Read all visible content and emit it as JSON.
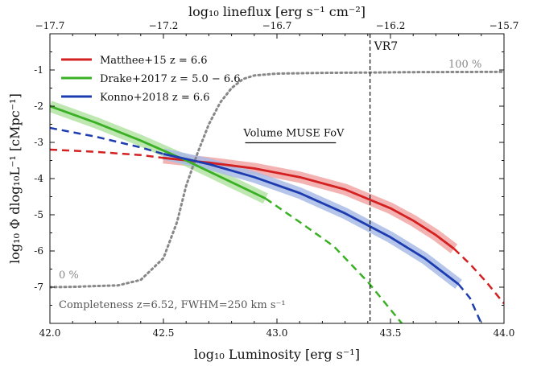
{
  "chart_data": {
    "type": "line",
    "xlabel": "log₁₀ Luminosity [erg s⁻¹]",
    "ylabel": "log₁₀ Φ dlog₁₀L⁻¹ [cMpc⁻¹]",
    "x2label": "log₁₀ lineflux [erg s⁻¹ cm⁻²]",
    "xlim": [
      42.0,
      44.0
    ],
    "ylim": [
      -8,
      0
    ],
    "xticks": [
      42.0,
      42.5,
      43.0,
      43.5,
      44.0
    ],
    "xtick_labels": [
      "42.0",
      "42.5",
      "43.0",
      "43.5",
      "44.0"
    ],
    "yticks": [
      -7,
      -6,
      -5,
      -4,
      -3,
      -2,
      -1
    ],
    "ytick_labels": [
      "-7",
      "-6",
      "-5",
      "-4",
      "-3",
      "-2",
      "-1"
    ],
    "x2ticks": [
      42.0,
      42.5,
      43.0,
      43.5,
      44.0
    ],
    "x2tick_labels": [
      "−17.7",
      "−17.2",
      "−16.7",
      "−16.2",
      "−15.7"
    ],
    "grid": false,
    "legend_placement": "top-left",
    "series": [
      {
        "name": "Matthee+15 z = 6.6",
        "color": "#d42020",
        "band_color": "#f2a6a6",
        "solid": [
          [
            42.5,
            -3.43
          ],
          [
            42.7,
            -3.56
          ],
          [
            42.9,
            -3.72
          ],
          [
            43.1,
            -3.96
          ],
          [
            43.3,
            -4.3
          ],
          [
            43.5,
            -4.82
          ],
          [
            43.6,
            -5.16
          ],
          [
            43.7,
            -5.56
          ],
          [
            43.78,
            -5.94
          ]
        ],
        "dashed": [
          [
            42.0,
            -3.2
          ],
          [
            42.2,
            -3.26
          ],
          [
            42.4,
            -3.35
          ],
          [
            42.5,
            -3.43
          ]
        ],
        "dashed_tail": [
          [
            43.78,
            -5.94
          ],
          [
            43.85,
            -6.36
          ],
          [
            43.92,
            -6.84
          ],
          [
            44.0,
            -7.45
          ]
        ]
      },
      {
        "name": "Drake+2017 z = 5.0 − 6.6",
        "color": "#3ab024",
        "band_color": "#b4e3a4",
        "solid": [
          [
            42.0,
            -2.0
          ],
          [
            42.2,
            -2.45
          ],
          [
            42.4,
            -2.95
          ],
          [
            42.6,
            -3.5
          ],
          [
            42.8,
            -4.1
          ],
          [
            42.95,
            -4.55
          ]
        ],
        "dashed": [],
        "dashed_tail": [
          [
            42.95,
            -4.55
          ],
          [
            43.1,
            -5.2
          ],
          [
            43.25,
            -5.87
          ],
          [
            43.4,
            -6.85
          ],
          [
            43.55,
            -8.0
          ]
        ]
      },
      {
        "name": "Konno+2018 z = 6.6",
        "color": "#1c3cb0",
        "band_color": "#a9bbe6",
        "solid": [
          [
            42.5,
            -3.32
          ],
          [
            42.7,
            -3.6
          ],
          [
            42.9,
            -3.96
          ],
          [
            43.1,
            -4.4
          ],
          [
            43.3,
            -4.96
          ],
          [
            43.5,
            -5.62
          ],
          [
            43.65,
            -6.2
          ],
          [
            43.8,
            -6.92
          ]
        ],
        "dashed": [
          [
            42.0,
            -2.6
          ],
          [
            42.2,
            -2.84
          ],
          [
            42.4,
            -3.14
          ],
          [
            42.5,
            -3.32
          ]
        ],
        "dashed_tail": [
          [
            43.8,
            -6.92
          ],
          [
            43.85,
            -7.3
          ],
          [
            43.9,
            -8.0
          ]
        ]
      }
    ],
    "completeness": {
      "color": "#888888",
      "points": [
        [
          42.0,
          -7.0
        ],
        [
          42.1,
          -6.99
        ],
        [
          42.2,
          -6.97
        ],
        [
          42.3,
          -6.95
        ],
        [
          42.4,
          -6.8
        ],
        [
          42.5,
          -6.2
        ],
        [
          42.56,
          -5.2
        ],
        [
          42.6,
          -4.2
        ],
        [
          42.65,
          -3.3
        ],
        [
          42.7,
          -2.5
        ],
        [
          42.75,
          -1.9
        ],
        [
          42.8,
          -1.5
        ],
        [
          42.85,
          -1.25
        ],
        [
          42.9,
          -1.15
        ],
        [
          43.0,
          -1.1
        ],
        [
          43.2,
          -1.08
        ],
        [
          43.4,
          -1.07
        ],
        [
          43.6,
          -1.06
        ],
        [
          44.0,
          -1.05
        ]
      ]
    },
    "vr7_line_x": 43.41,
    "muse_fov_segment": {
      "x": [
        42.86,
        43.26
      ],
      "y": -2.7
    }
  },
  "legend": [
    {
      "label": "Matthee+15 z = 6.6",
      "color": "#d42020"
    },
    {
      "label": "Drake+2017 z = 5.0 − 6.6",
      "color": "#3ab024"
    },
    {
      "label": "Konno+2018 z = 6.6",
      "color": "#1c3cb0"
    }
  ],
  "annotations": {
    "vr7": "VR7",
    "muse": "Volume MUSE FoV",
    "pct100": "100 %",
    "pct0": "0 %",
    "completeness": "Completeness z=6.52, FWHM=250 km s⁻¹"
  }
}
